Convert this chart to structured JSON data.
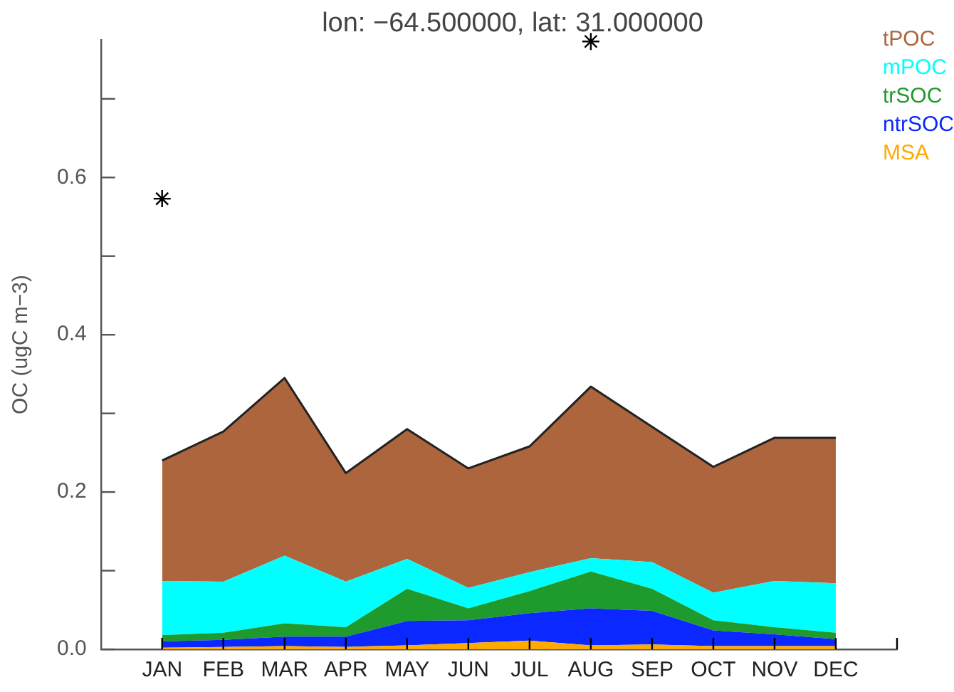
{
  "chart_data": {
    "type": "area",
    "title": "lon: −64.500000, lat: 31.000000",
    "ylabel": "OC (ugC m−3)",
    "categories": [
      "JAN",
      "FEB",
      "MAR",
      "APR",
      "MAY",
      "JUN",
      "JUL",
      "AUG",
      "SEP",
      "OCT",
      "NOV",
      "DEC"
    ],
    "stacked": true,
    "ylim": [
      0,
      0.775
    ],
    "yticks": [
      {
        "value": 0,
        "label": "0.0"
      },
      {
        "value": 0.1,
        "label": null
      },
      0.2,
      {
        "value": 0.3,
        "label": null
      },
      0.4,
      {
        "value": 0.5,
        "label": null
      },
      0.6,
      {
        "value": 0.7,
        "label": null
      }
    ],
    "grid": false,
    "legend": "top right",
    "series": [
      {
        "name": "MSA",
        "color": "#ffaa00",
        "values": [
          0.002,
          0.003,
          0.004,
          0.003,
          0.005,
          0.008,
          0.011,
          0.005,
          0.006,
          0.004,
          0.004,
          0.004
        ]
      },
      {
        "name": "ntrSOC",
        "color": "#0a28ff",
        "values": [
          0.008,
          0.009,
          0.012,
          0.013,
          0.031,
          0.029,
          0.035,
          0.047,
          0.043,
          0.02,
          0.015,
          0.009
        ]
      },
      {
        "name": "trSOC",
        "color": "#1f9a2c",
        "values": [
          0.008,
          0.009,
          0.017,
          0.012,
          0.041,
          0.015,
          0.028,
          0.047,
          0.028,
          0.013,
          0.009,
          0.008
        ]
      },
      {
        "name": "mPOC",
        "color": "#00ffff",
        "values": [
          0.069,
          0.065,
          0.086,
          0.058,
          0.038,
          0.026,
          0.024,
          0.017,
          0.034,
          0.035,
          0.059,
          0.063
        ]
      },
      {
        "name": "tPOC",
        "color": "#ad653d",
        "values": [
          0.153,
          0.191,
          0.226,
          0.138,
          0.165,
          0.152,
          0.16,
          0.218,
          0.172,
          0.16,
          0.182,
          0.185
        ]
      },
      {
        "type": "scatter",
        "color": "#000000",
        "marker": "cross",
        "x": [
          "JAN",
          "AUG"
        ],
        "values": [
          0.573,
          0.773
        ]
      }
    ]
  }
}
